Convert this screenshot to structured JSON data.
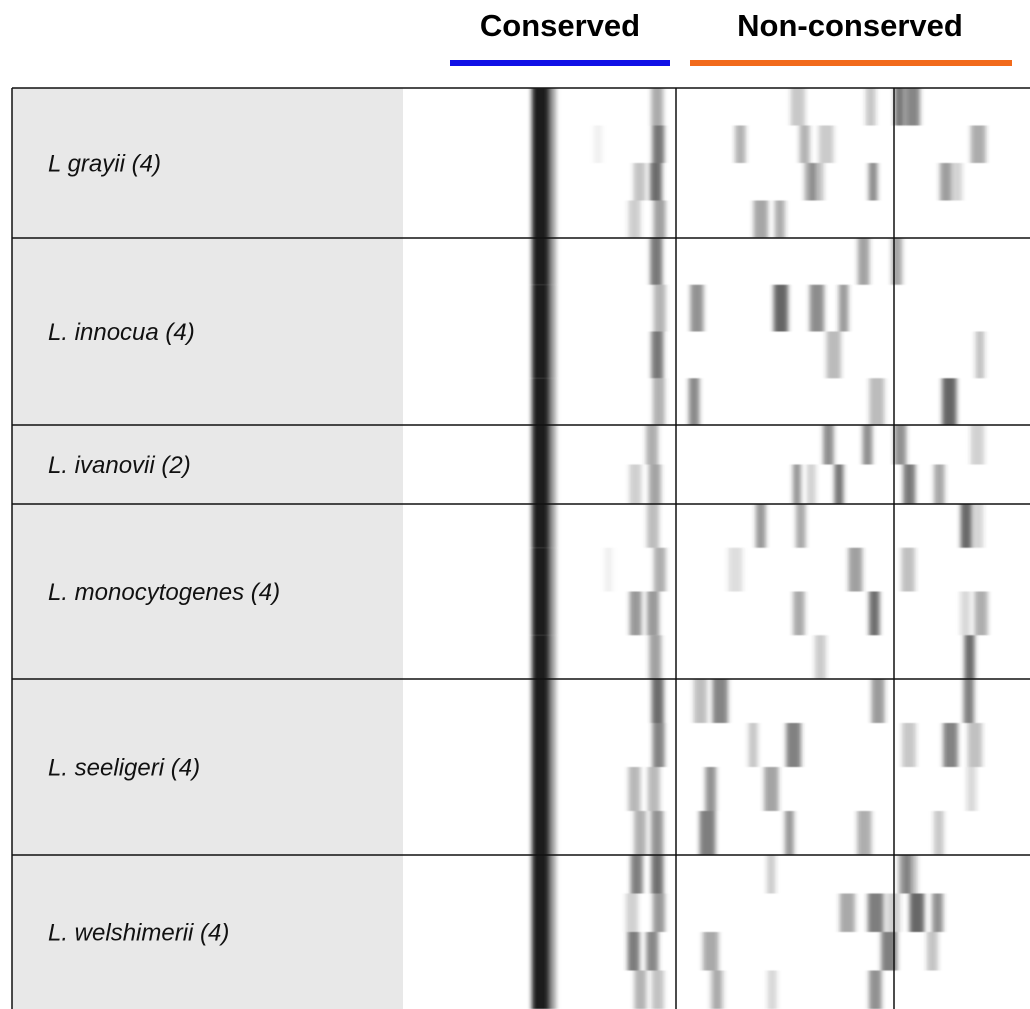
{
  "header": {
    "conserved": "Conserved",
    "non_conserved": "Non-conserved"
  },
  "rows": [
    {
      "label": "L grayii (4)"
    },
    {
      "label": "L. innocua (4)"
    },
    {
      "label": "L. ivanovii (2)"
    },
    {
      "label": "L. monocytogenes (4)"
    },
    {
      "label": "L. seeligeri (4)"
    },
    {
      "label": "L. welshimerii (4)"
    }
  ]
}
